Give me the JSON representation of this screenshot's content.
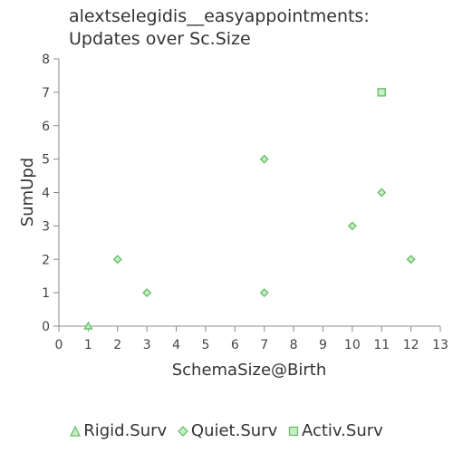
{
  "title": {
    "line1": "alextselegidis__easyappointments:",
    "line2": "Updates over Sc.Size"
  },
  "colors": {
    "marker_stroke": "#66c266",
    "marker_fill": "#c9ebc9",
    "axis": "#888888"
  },
  "chart_data": {
    "type": "scatter",
    "title": "alextselegidis__easyappointments: Updates over Sc.Size",
    "xlabel": "SchemaSize@Birth",
    "ylabel": "SumUpd",
    "xlim": [
      0,
      13
    ],
    "ylim": [
      0,
      8
    ],
    "x_ticks": [
      "0",
      "1",
      "2",
      "3",
      "4",
      "5",
      "6",
      "7",
      "8",
      "9",
      "10",
      "11",
      "12",
      "13"
    ],
    "y_ticks": [
      "0",
      "1",
      "2",
      "3",
      "4",
      "5",
      "6",
      "7",
      "8"
    ],
    "grid": false,
    "legend_position": "bottom",
    "series": [
      {
        "name": "Rigid.Surv",
        "marker": "triangle",
        "points": [
          [
            1,
            0
          ]
        ]
      },
      {
        "name": "Quiet.Surv",
        "marker": "diamond",
        "points": [
          [
            2,
            2
          ],
          [
            3,
            1
          ],
          [
            7,
            5
          ],
          [
            7,
            1
          ],
          [
            10,
            3
          ],
          [
            11,
            4
          ],
          [
            12,
            2
          ]
        ]
      },
      {
        "name": "Activ.Surv",
        "marker": "square",
        "points": [
          [
            11,
            7
          ]
        ]
      }
    ]
  }
}
